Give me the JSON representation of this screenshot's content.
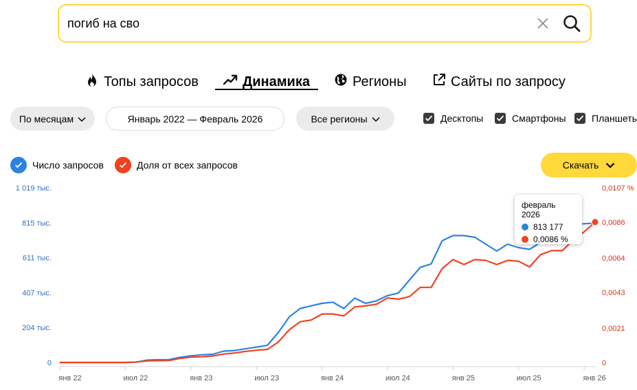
{
  "search": {
    "value": "погиб на сво"
  },
  "tabs": [
    {
      "label": "Топы запросов",
      "icon": "flame-icon"
    },
    {
      "label": "Динамика",
      "icon": "trend-icon",
      "active": true
    },
    {
      "label": "Регионы",
      "icon": "globe-icon"
    },
    {
      "label": "Сайты по запросу",
      "icon": "external-link-icon"
    }
  ],
  "filters": {
    "period": "По месяцам",
    "date_range": "Январь 2022 — Февраль 2026",
    "regions": "Все регионы"
  },
  "devices": [
    "Десктопы",
    "Смартфоны",
    "Планшеты"
  ],
  "legend": {
    "count": "Число запросов",
    "share": "Доля от всех запросов"
  },
  "download_label": "Скачать",
  "tooltip": {
    "date": "февраль 2026",
    "count": "813 177",
    "share": "0,0086 %"
  },
  "colors": {
    "accent": "#ffd83a",
    "count": "#2c82e0",
    "share": "#f0421f"
  },
  "chart_data": {
    "type": "line",
    "x": [
      "2022-01",
      "2022-02",
      "2022-03",
      "2022-04",
      "2022-05",
      "2022-06",
      "2022-07",
      "2022-08",
      "2022-09",
      "2022-10",
      "2022-11",
      "2022-12",
      "2023-01",
      "2023-02",
      "2023-03",
      "2023-04",
      "2023-05",
      "2023-06",
      "2023-07",
      "2023-08",
      "2023-09",
      "2023-10",
      "2023-11",
      "2023-12",
      "2024-01",
      "2024-02",
      "2024-03",
      "2024-04",
      "2024-05",
      "2024-06",
      "2024-07",
      "2024-08",
      "2024-09",
      "2024-10",
      "2024-11",
      "2024-12",
      "2025-01",
      "2025-02",
      "2025-03",
      "2025-04",
      "2025-05",
      "2025-06",
      "2025-07",
      "2025-08",
      "2025-09",
      "2025-10",
      "2025-11",
      "2025-12",
      "2026-01",
      "2026-02"
    ],
    "x_tick_labels": [
      "янв 22",
      "июл 22",
      "янв 23",
      "июл 23",
      "янв 24",
      "июл 24",
      "янв 25",
      "июл 25",
      "янв 26"
    ],
    "x_tick_positions": [
      0,
      6,
      12,
      18,
      24,
      30,
      36,
      42,
      48
    ],
    "series": [
      {
        "name": "Число запросов",
        "axis": "left",
        "values": [
          0,
          0,
          0,
          0,
          0,
          0,
          0,
          2000,
          14000,
          16000,
          17000,
          30000,
          39000,
          45000,
          48000,
          66000,
          70000,
          80000,
          90000,
          100000,
          175000,
          265000,
          315000,
          330000,
          345000,
          352000,
          315000,
          375000,
          345000,
          360000,
          390000,
          405000,
          480000,
          555000,
          575000,
          710000,
          740000,
          740000,
          730000,
          690000,
          650000,
          690000,
          670000,
          660000,
          700000,
          738000,
          790000,
          805000,
          809000,
          813177
        ]
      },
      {
        "name": "Доля от всех запросов",
        "axis": "right",
        "values": [
          0,
          0,
          0,
          0,
          0,
          0,
          0,
          3e-05,
          0.0001,
          0.00011,
          0.00012,
          0.00025,
          0.00033,
          0.00035,
          0.0004,
          0.00052,
          0.00058,
          0.00068,
          0.00075,
          0.0008,
          0.00125,
          0.002,
          0.0025,
          0.0026,
          0.00297,
          0.00297,
          0.00285,
          0.0034,
          0.00347,
          0.00357,
          0.00395,
          0.00388,
          0.00403,
          0.0046,
          0.0046,
          0.00575,
          0.0063,
          0.006,
          0.0063,
          0.00625,
          0.006,
          0.00625,
          0.0062,
          0.00585,
          0.0066,
          0.00685,
          0.00685,
          0.0075,
          0.008,
          0.0086
        ]
      }
    ],
    "y_left": {
      "ticks": [
        0,
        204000,
        407000,
        611000,
        815000,
        1019000
      ],
      "labels": [
        "0",
        "204 тыс.",
        "407 тыс.",
        "611 тыс.",
        "815 тыс.",
        "1 019 тыс."
      ],
      "range": [
        0,
        1019000
      ]
    },
    "y_right": {
      "ticks": [
        0,
        0.0021,
        0.0043,
        0.0064,
        0.0086,
        0.0107
      ],
      "labels": [
        "0",
        "0,0021",
        "0,0043",
        "0,0064",
        "0,0086",
        "0,0107 %"
      ],
      "range": [
        0,
        0.0107
      ]
    },
    "grid": false,
    "legend_position": "top-left"
  }
}
